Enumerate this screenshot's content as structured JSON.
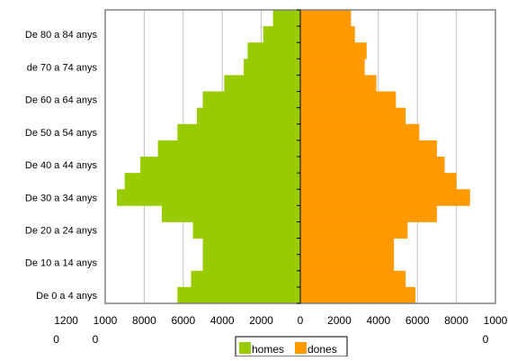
{
  "chart_data": {
    "type": "bar",
    "orientation": "horizontal",
    "layout": "population-pyramid",
    "grid": true,
    "legend_position": "bottom",
    "xlim": [
      -10000,
      10000
    ],
    "x_ticks": [
      {
        "value": -10000,
        "line1": "1000",
        "line2": "0"
      },
      {
        "value": -8000,
        "line1": "8000",
        "line2": ""
      },
      {
        "value": -6000,
        "line1": "6000",
        "line2": ""
      },
      {
        "value": -4000,
        "line1": "4000",
        "line2": ""
      },
      {
        "value": -2000,
        "line1": "2000",
        "line2": ""
      },
      {
        "value": 0,
        "line1": "0",
        "line2": ""
      },
      {
        "value": 2000,
        "line1": "2000",
        "line2": ""
      },
      {
        "value": 4000,
        "line1": "4000",
        "line2": ""
      },
      {
        "value": 6000,
        "line1": "6000",
        "line2": ""
      },
      {
        "value": 8000,
        "line1": "8000",
        "line2": ""
      },
      {
        "value": 10000,
        "line1": "1000",
        "line2": "0"
      }
    ],
    "extra_tick_labels": [
      {
        "value": -12000,
        "line1": "1200",
        "line2": "0"
      }
    ],
    "category_labels": [
      {
        "index": 0,
        "text": "De 0 a 4 anys"
      },
      {
        "index": 2,
        "text": "De 10 a 14 anys"
      },
      {
        "index": 4,
        "text": "De 20 a 24 anys"
      },
      {
        "index": 6,
        "text": "De 30 a 34 anys"
      },
      {
        "index": 8,
        "text": "De 40 a 44 anys"
      },
      {
        "index": 10,
        "text": "De 50 a 54 anys"
      },
      {
        "index": 12,
        "text": "De 60 a 64 anys"
      },
      {
        "index": 14,
        "text": "de 70 a 74 anys"
      },
      {
        "index": 16,
        "text": "De 80 a 84 anys"
      }
    ],
    "category_count": 18,
    "series": [
      {
        "name": "homes",
        "color": "#99cc00",
        "values": [
          6300,
          5600,
          5000,
          5000,
          5500,
          7100,
          9400,
          9000,
          8200,
          7300,
          6300,
          5300,
          5000,
          3900,
          2900,
          2700,
          1900,
          1400
        ]
      },
      {
        "name": "dones",
        "color": "#ff9900",
        "values": [
          5900,
          5400,
          4800,
          4800,
          5500,
          7000,
          8700,
          8000,
          7400,
          7000,
          6100,
          5400,
          4900,
          3900,
          3300,
          3400,
          2800,
          2600
        ]
      }
    ]
  }
}
